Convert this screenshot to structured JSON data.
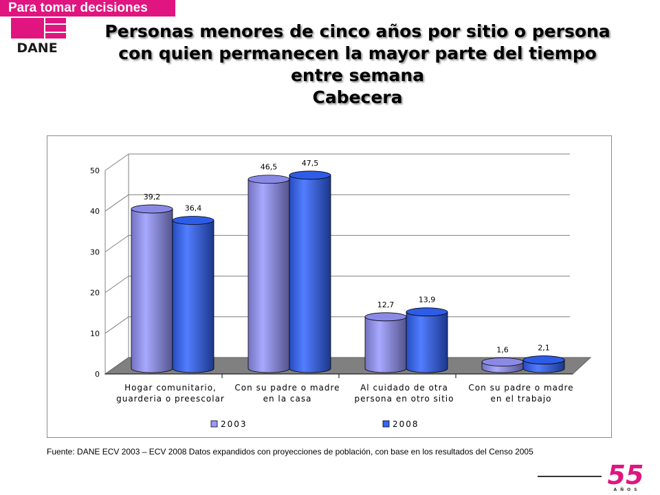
{
  "header": {
    "banner_text": "Para tomar decisiones",
    "logo_text": "DANE",
    "accent_color": "#e0157f"
  },
  "title_lines": [
    "Personas menores de cinco años por sitio o persona",
    "con quien permanecen la mayor parte del  tiempo",
    "entre semana",
    "Cabecera"
  ],
  "chart_data": {
    "type": "bar",
    "categories": [
      [
        "Hogar comunitario,",
        "guarderia o preescolar"
      ],
      [
        "Con su padre o madre",
        "en la casa"
      ],
      [
        "Al cuidado de otra",
        "persona en otro sitio"
      ],
      [
        "Con su padre o madre",
        "en el trabajo"
      ]
    ],
    "series": [
      {
        "name": "2003",
        "values": [
          39.2,
          46.5,
          12.7,
          1.6
        ],
        "labels": [
          "39,2",
          "46,5",
          "12,7",
          "1,6"
        ],
        "color": "#9999ff"
      },
      {
        "name": "2008",
        "values": [
          36.4,
          47.5,
          13.9,
          2.1
        ],
        "labels": [
          "36,4",
          "47,5",
          "13,9",
          "2,1"
        ],
        "color": "#3366ff"
      }
    ],
    "y_ticks": [
      0,
      10,
      20,
      30,
      40,
      50
    ],
    "ylim": [
      0,
      50
    ],
    "grid": true,
    "legend_position": "bottom",
    "floor_color": "#808080"
  },
  "footer": {
    "source": "Fuente: DANE ECV 2003 – ECV 2008 Datos expandidos con proyecciones de población, con base en los resultados del Censo 2005",
    "anniversary_number": "55",
    "anniversary_text": "AÑOS"
  }
}
